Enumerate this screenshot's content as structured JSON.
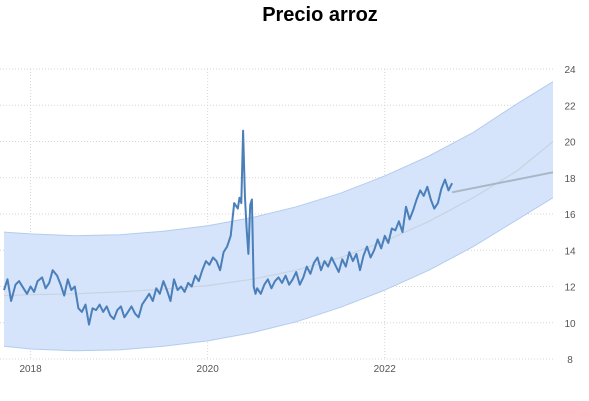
{
  "chart_data": {
    "type": "line",
    "title": "Precio arroz",
    "xlabel": "",
    "ylabel": "",
    "xlim": [
      2017.7,
      2023.9
    ],
    "ylim": [
      8,
      24
    ],
    "x_ticks": [
      {
        "value": 2018,
        "label": "2018"
      },
      {
        "value": 2020,
        "label": "2020"
      },
      {
        "value": 2022,
        "label": "2022"
      }
    ],
    "y_ticks": [
      {
        "value": 8,
        "label": "8"
      },
      {
        "value": 10,
        "label": "10"
      },
      {
        "value": 12,
        "label": "12"
      },
      {
        "value": 14,
        "label": "14"
      },
      {
        "value": 16,
        "label": "16"
      },
      {
        "value": 18,
        "label": "18"
      },
      {
        "value": 20,
        "label": "20"
      },
      {
        "value": 22,
        "label": "22"
      },
      {
        "value": 24,
        "label": "24"
      }
    ],
    "grid": "vertical dotted",
    "y_axis_side": "right",
    "colors": {
      "price": "#4a7fba",
      "band": "#d5e4fa",
      "band_edge": "#b3cced",
      "trend": "#c8d3e0",
      "forecast": "#a9b6c6"
    },
    "series": [
      {
        "role": "price",
        "x": [
          2017.7,
          2017.74,
          2017.78,
          2017.83,
          2017.87,
          2017.92,
          2017.96,
          2018.0,
          2018.04,
          2018.08,
          2018.13,
          2018.17,
          2018.21,
          2018.25,
          2018.3,
          2018.34,
          2018.38,
          2018.42,
          2018.46,
          2018.5,
          2018.54,
          2018.58,
          2018.62,
          2018.66,
          2018.7,
          2018.74,
          2018.78,
          2018.82,
          2018.86,
          2018.9,
          2018.94,
          2018.98,
          2019.02,
          2019.06,
          2019.1,
          2019.14,
          2019.18,
          2019.22,
          2019.26,
          2019.3,
          2019.34,
          2019.38,
          2019.42,
          2019.46,
          2019.5,
          2019.54,
          2019.58,
          2019.62,
          2019.66,
          2019.7,
          2019.74,
          2019.78,
          2019.82,
          2019.86,
          2019.9,
          2019.94,
          2019.98,
          2020.02,
          2020.06,
          2020.1,
          2020.14,
          2020.18,
          2020.22,
          2020.26,
          2020.3,
          2020.34,
          2020.36,
          2020.38,
          2020.4,
          2020.42,
          2020.44,
          2020.46,
          2020.48,
          2020.5,
          2020.52,
          2020.54,
          2020.56,
          2020.6,
          2020.64,
          2020.68,
          2020.72,
          2020.76,
          2020.8,
          2020.84,
          2020.88,
          2020.92,
          2020.96,
          2021.0,
          2021.04,
          2021.08,
          2021.12,
          2021.16,
          2021.2,
          2021.24,
          2021.28,
          2021.32,
          2021.36,
          2021.4,
          2021.44,
          2021.48,
          2021.52,
          2021.56,
          2021.6,
          2021.64,
          2021.68,
          2021.72,
          2021.76,
          2021.8,
          2021.84,
          2021.88,
          2021.92,
          2021.96,
          2022.0,
          2022.04,
          2022.08,
          2022.12,
          2022.16,
          2022.2,
          2022.24,
          2022.28,
          2022.32,
          2022.36,
          2022.4,
          2022.44,
          2022.48,
          2022.52,
          2022.56,
          2022.6,
          2022.64,
          2022.68,
          2022.72,
          2022.76
        ],
        "y": [
          11.8,
          12.4,
          11.2,
          12.1,
          12.3,
          11.9,
          11.6,
          12.0,
          11.7,
          12.3,
          12.5,
          11.9,
          12.2,
          12.9,
          12.6,
          12.1,
          11.5,
          12.4,
          11.8,
          12.0,
          10.8,
          10.6,
          11.0,
          9.9,
          10.8,
          10.7,
          11.0,
          10.6,
          10.9,
          10.4,
          10.2,
          10.7,
          10.9,
          10.3,
          10.6,
          10.9,
          10.5,
          10.3,
          11.0,
          11.3,
          11.6,
          11.2,
          11.9,
          11.6,
          12.3,
          11.8,
          11.2,
          12.4,
          11.8,
          12.0,
          11.7,
          12.2,
          12.0,
          12.6,
          12.3,
          12.9,
          13.4,
          13.2,
          13.6,
          13.4,
          12.9,
          13.9,
          14.2,
          14.8,
          16.6,
          16.3,
          16.9,
          16.6,
          20.6,
          17.0,
          15.2,
          13.8,
          16.5,
          16.8,
          12.0,
          11.6,
          11.9,
          11.6,
          12.1,
          12.4,
          11.9,
          12.3,
          12.5,
          12.2,
          12.6,
          12.1,
          12.4,
          12.8,
          12.1,
          12.5,
          13.1,
          12.7,
          13.3,
          13.6,
          12.9,
          13.4,
          13.1,
          13.6,
          13.2,
          12.8,
          13.5,
          13.1,
          13.9,
          13.4,
          13.8,
          12.9,
          13.7,
          14.2,
          13.6,
          14.0,
          14.6,
          14.1,
          14.8,
          14.4,
          15.2,
          15.1,
          15.6,
          15.0,
          16.4,
          15.7,
          16.2,
          16.8,
          17.3,
          17.0,
          17.5,
          16.8,
          16.3,
          16.6,
          17.4,
          17.9,
          17.3,
          17.7
        ]
      },
      {
        "role": "forecast",
        "x": [
          2022.76,
          2023.9
        ],
        "y": [
          17.2,
          18.3
        ]
      },
      {
        "role": "trend",
        "x": [
          2017.7,
          2018.0,
          2018.5,
          2019.0,
          2019.5,
          2020.0,
          2020.5,
          2021.0,
          2021.5,
          2022.0,
          2022.5,
          2023.0,
          2023.5,
          2023.9
        ],
        "y": [
          11.5,
          11.55,
          11.6,
          11.7,
          11.85,
          12.05,
          12.4,
          12.9,
          13.6,
          14.5,
          15.6,
          16.9,
          18.4,
          20.0
        ]
      },
      {
        "role": "band_upper",
        "x": [
          2017.7,
          2018.0,
          2018.5,
          2019.0,
          2019.5,
          2020.0,
          2020.5,
          2021.0,
          2021.5,
          2022.0,
          2022.5,
          2023.0,
          2023.5,
          2023.9
        ],
        "y": [
          15.0,
          14.9,
          14.8,
          14.85,
          15.05,
          15.35,
          15.8,
          16.4,
          17.15,
          18.1,
          19.2,
          20.5,
          22.1,
          23.3
        ]
      },
      {
        "role": "band_lower",
        "x": [
          2017.7,
          2018.0,
          2018.5,
          2019.0,
          2019.5,
          2020.0,
          2020.5,
          2021.0,
          2021.5,
          2022.0,
          2022.5,
          2023.0,
          2023.5,
          2023.9
        ],
        "y": [
          8.7,
          8.55,
          8.45,
          8.5,
          8.7,
          9.0,
          9.45,
          10.05,
          10.85,
          11.8,
          12.9,
          14.2,
          15.7,
          16.9
        ]
      }
    ]
  }
}
